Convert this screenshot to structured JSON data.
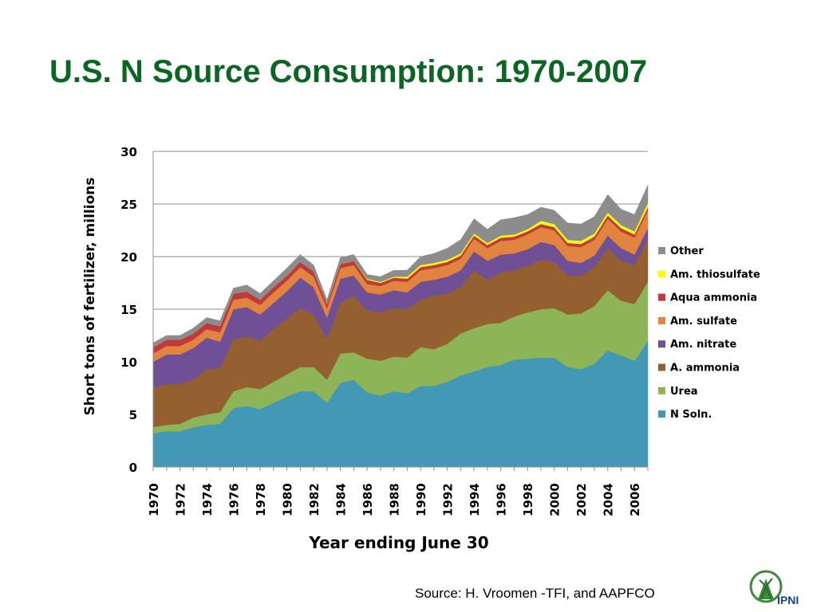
{
  "slide": {
    "title": "U.S. N Source Consumption: 1970-2007",
    "source": "Source: H. Vroomen -TFI, and AAPFCO",
    "logo_text": "IPNI"
  },
  "colors": {
    "title": "#0b6623",
    "N Soln.": "#4298b5",
    "Urea": "#8db456",
    "A. ammonia": "#94602f",
    "Am. nitrate": "#6f4f95",
    "Am. sulfate": "#e0843f",
    "Aqua ammonia": "#c0393b",
    "Am. thiosulfate": "#fafa10",
    "Other": "#8c8c8c"
  },
  "chart_data": {
    "type": "area",
    "stacked": true,
    "xlabel": "Year ending June 30",
    "ylabel": "Short tons of fertilizer,   millions",
    "ylim": [
      0,
      30
    ],
    "yticks": [
      0,
      5,
      10,
      15,
      20,
      25,
      30
    ],
    "xticks": [
      "1970",
      "1972",
      "1974",
      "1976",
      "1978",
      "1980",
      "1982",
      "1984",
      "1986",
      "1988",
      "1990",
      "1992",
      "1994",
      "1996",
      "1998",
      "2000",
      "2002",
      "2004",
      "2006"
    ],
    "grid": "horizontal",
    "legend_position": "right",
    "legend_order": [
      "Other",
      "Am. thiosulfate",
      "Aqua ammonia",
      "Am. sulfate",
      "Am. nitrate",
      "A. ammonia",
      "Urea",
      "N Soln."
    ],
    "x": [
      1970,
      1971,
      1972,
      1973,
      1974,
      1975,
      1976,
      1977,
      1978,
      1979,
      1980,
      1981,
      1982,
      1983,
      1984,
      1985,
      1986,
      1987,
      1988,
      1989,
      1990,
      1991,
      1992,
      1993,
      1994,
      1995,
      1996,
      1997,
      1998,
      1999,
      2000,
      2001,
      2002,
      2003,
      2004,
      2005,
      2006,
      2007
    ],
    "series": [
      {
        "name": "N Soln.",
        "values": [
          3.2,
          3.4,
          3.4,
          3.8,
          4.0,
          4.1,
          5.6,
          5.8,
          5.5,
          6.1,
          6.7,
          7.2,
          7.2,
          6.1,
          8.0,
          8.3,
          7.1,
          6.8,
          7.2,
          7.0,
          7.7,
          7.7,
          8.1,
          8.7,
          9.1,
          9.5,
          9.7,
          10.2,
          10.3,
          10.4,
          10.4,
          9.5,
          9.3,
          9.8,
          11.1,
          10.6,
          10.1,
          12.0
        ]
      },
      {
        "name": "Urea",
        "values": [
          0.6,
          0.6,
          0.7,
          0.9,
          1.0,
          1.1,
          1.6,
          1.8,
          1.9,
          2.0,
          2.1,
          2.3,
          2.3,
          2.2,
          2.8,
          2.6,
          3.2,
          3.3,
          3.3,
          3.4,
          3.7,
          3.5,
          3.6,
          4.0,
          4.1,
          4.1,
          4.0,
          4.1,
          4.4,
          4.6,
          4.7,
          5.0,
          5.3,
          5.5,
          5.7,
          5.2,
          5.4,
          5.6
        ]
      },
      {
        "name": "A. ammonia",
        "values": [
          3.7,
          3.9,
          3.8,
          3.6,
          4.3,
          4.2,
          4.9,
          4.8,
          4.6,
          5.0,
          5.3,
          5.6,
          5.0,
          3.9,
          4.8,
          5.4,
          4.6,
          4.6,
          4.6,
          4.6,
          4.5,
          5.1,
          4.8,
          4.4,
          5.5,
          4.2,
          4.8,
          4.4,
          4.4,
          4.7,
          4.4,
          3.7,
          3.6,
          3.7,
          4.0,
          3.8,
          3.7,
          4.1
        ]
      },
      {
        "name": "Am. nitrate",
        "values": [
          2.5,
          2.8,
          2.8,
          3.0,
          3.0,
          2.5,
          2.9,
          2.8,
          2.5,
          2.5,
          2.6,
          2.9,
          2.6,
          2.0,
          2.3,
          1.9,
          1.7,
          1.7,
          1.7,
          1.6,
          1.7,
          1.5,
          1.6,
          1.6,
          1.8,
          1.8,
          1.7,
          1.6,
          1.6,
          1.7,
          1.6,
          1.4,
          1.2,
          1.1,
          1.2,
          1.2,
          1.0,
          1.0
        ]
      },
      {
        "name": "Am. sulfate",
        "values": [
          0.8,
          0.8,
          0.8,
          0.8,
          0.8,
          0.9,
          0.9,
          0.9,
          0.9,
          1.0,
          1.0,
          1.0,
          1.0,
          0.9,
          1.0,
          1.0,
          0.8,
          0.8,
          0.9,
          1.0,
          1.1,
          1.1,
          1.1,
          1.1,
          1.2,
          1.2,
          1.3,
          1.3,
          1.4,
          1.4,
          1.4,
          1.4,
          1.5,
          1.5,
          1.6,
          1.6,
          1.6,
          1.7
        ]
      },
      {
        "name": "Aqua ammonia",
        "values": [
          0.6,
          0.6,
          0.6,
          0.6,
          0.6,
          0.6,
          0.6,
          0.6,
          0.5,
          0.5,
          0.5,
          0.5,
          0.5,
          0.4,
          0.4,
          0.4,
          0.4,
          0.3,
          0.3,
          0.3,
          0.3,
          0.3,
          0.3,
          0.3,
          0.3,
          0.3,
          0.3,
          0.3,
          0.3,
          0.3,
          0.3,
          0.3,
          0.3,
          0.3,
          0.3,
          0.3,
          0.3,
          0.3
        ]
      },
      {
        "name": "Am. thiosulfate",
        "values": [
          0,
          0,
          0,
          0,
          0,
          0,
          0,
          0,
          0,
          0,
          0,
          0,
          0,
          0,
          0,
          0,
          0.1,
          0.1,
          0.1,
          0.2,
          0.2,
          0.2,
          0.2,
          0.2,
          0.2,
          0.2,
          0.2,
          0.2,
          0.2,
          0.3,
          0.3,
          0.3,
          0.3,
          0.3,
          0.3,
          0.3,
          0.3,
          0.4
        ]
      },
      {
        "name": "Other",
        "values": [
          0.4,
          0.4,
          0.4,
          0.5,
          0.5,
          0.5,
          0.5,
          0.6,
          0.6,
          0.6,
          0.7,
          0.7,
          0.6,
          0.4,
          0.6,
          0.6,
          0.4,
          0.5,
          0.6,
          0.6,
          0.8,
          0.9,
          1.1,
          1.3,
          1.4,
          1.3,
          1.5,
          1.6,
          1.4,
          1.3,
          1.3,
          1.6,
          1.6,
          1.6,
          1.7,
          1.5,
          1.6,
          1.7
        ]
      }
    ]
  }
}
